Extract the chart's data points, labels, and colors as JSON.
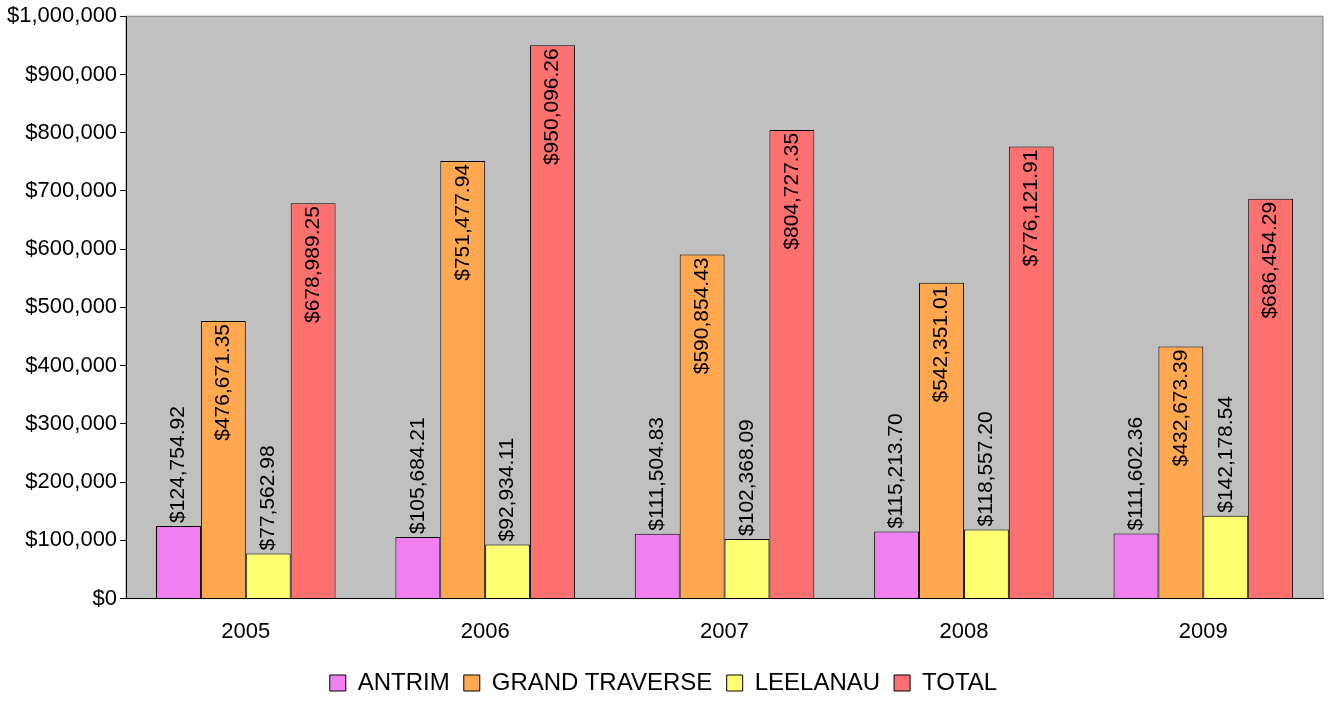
{
  "chart_data": {
    "type": "bar",
    "categories": [
      "2005",
      "2006",
      "2007",
      "2008",
      "2009"
    ],
    "series": [
      {
        "name": "ANTRIM",
        "color": "#f080f0",
        "values": [
          124754.92,
          105684.21,
          111504.83,
          115213.7,
          111602.36
        ],
        "value_labels": [
          "$124,754.92",
          "$105,684.21",
          "$111,504.83",
          "$115,213.70",
          "$111,602.36"
        ]
      },
      {
        "name": "GRAND TRAVERSE",
        "color": "#ffa850",
        "values": [
          476671.35,
          751477.94,
          590854.43,
          542351.01,
          432673.39
        ],
        "value_labels": [
          "$476,671.35",
          "$751,477.94",
          "$590,854.43",
          "$542,351.01",
          "$432,673.39"
        ]
      },
      {
        "name": "LEELANAU",
        "color": "#ffff70",
        "values": [
          77562.98,
          92934.11,
          102368.09,
          118557.2,
          142178.54
        ],
        "value_labels": [
          "$77,562.98",
          "$92,934.11",
          "$102,368.09",
          "$118,557.20",
          "$142,178.54"
        ]
      },
      {
        "name": "TOTAL",
        "color": "#ff7070",
        "values": [
          678989.25,
          950096.26,
          804727.35,
          776121.91,
          686454.29
        ],
        "value_labels": [
          "$678,989.25",
          "$950,096.26",
          "$804,727.35",
          "$776,121.91",
          "$686,454.29"
        ]
      }
    ],
    "ylim": [
      0,
      1000000
    ],
    "yticks": [
      {
        "value": 0,
        "label": "$0"
      },
      {
        "value": 100000,
        "label": "$100,000"
      },
      {
        "value": 200000,
        "label": "$200,000"
      },
      {
        "value": 300000,
        "label": "$300,000"
      },
      {
        "value": 400000,
        "label": "$400,000"
      },
      {
        "value": 500000,
        "label": "$500,000"
      },
      {
        "value": 600000,
        "label": "$600,000"
      },
      {
        "value": 700000,
        "label": "$700,000"
      },
      {
        "value": 800000,
        "label": "$800,000"
      },
      {
        "value": 900000,
        "label": "$900,000"
      },
      {
        "value": 1000000,
        "label": "$1,000,000"
      }
    ],
    "grid": false,
    "legend": "bottom"
  }
}
